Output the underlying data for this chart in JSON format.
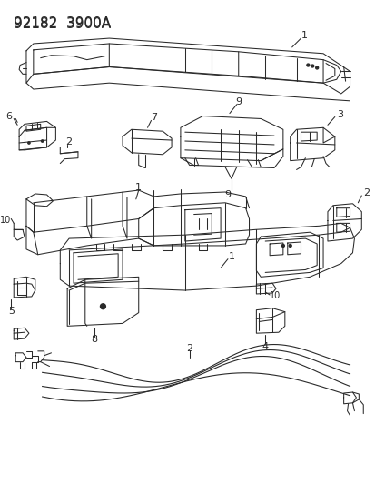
{
  "title": "92182  3900A",
  "background_color": "#ffffff",
  "line_color": "#2a2a2a",
  "title_fontsize": 11,
  "label_fontsize": 7.5,
  "figsize": [
    4.14,
    5.33
  ],
  "dpi": 100
}
